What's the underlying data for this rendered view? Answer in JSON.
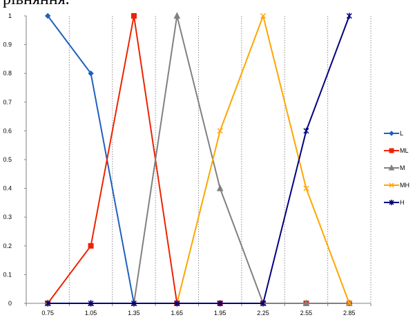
{
  "header_fragment": "рівняння.",
  "chart_data": {
    "type": "line",
    "title": "",
    "xlabel": "",
    "ylabel": "",
    "categories": [
      "0.75",
      "1.05",
      "1.35",
      "1.65",
      "1.95",
      "2.25",
      "2.55",
      "2.85"
    ],
    "ylim": [
      0,
      1
    ],
    "yticks": [
      "0",
      "0.1",
      "0.2",
      "0.3",
      "0.4",
      "0.5",
      "0.6",
      "0.7",
      "0.8",
      "0.9",
      "1"
    ],
    "grid": "vertical-dotted",
    "legend_position": "right",
    "series": [
      {
        "name": "L",
        "color": "#1f5fbf",
        "marker": "diamond",
        "values": [
          1,
          0.8,
          0,
          0,
          0,
          0,
          0,
          0
        ]
      },
      {
        "name": "ML",
        "color": "#ee2200",
        "marker": "square",
        "values": [
          0,
          0.2,
          1,
          0,
          0,
          0,
          0,
          0
        ]
      },
      {
        "name": "M",
        "color": "#808080",
        "marker": "triangle",
        "values": [
          0,
          0,
          0,
          1,
          0.4,
          0,
          0,
          0
        ]
      },
      {
        "name": "MH",
        "color": "#ffa500",
        "marker": "x",
        "values": [
          0,
          0,
          0,
          0,
          0.6,
          1,
          0.4,
          0
        ]
      },
      {
        "name": "H",
        "color": "#000080",
        "marker": "star",
        "values": [
          0,
          0,
          0,
          0,
          0,
          0,
          0.6,
          1
        ]
      }
    ]
  }
}
